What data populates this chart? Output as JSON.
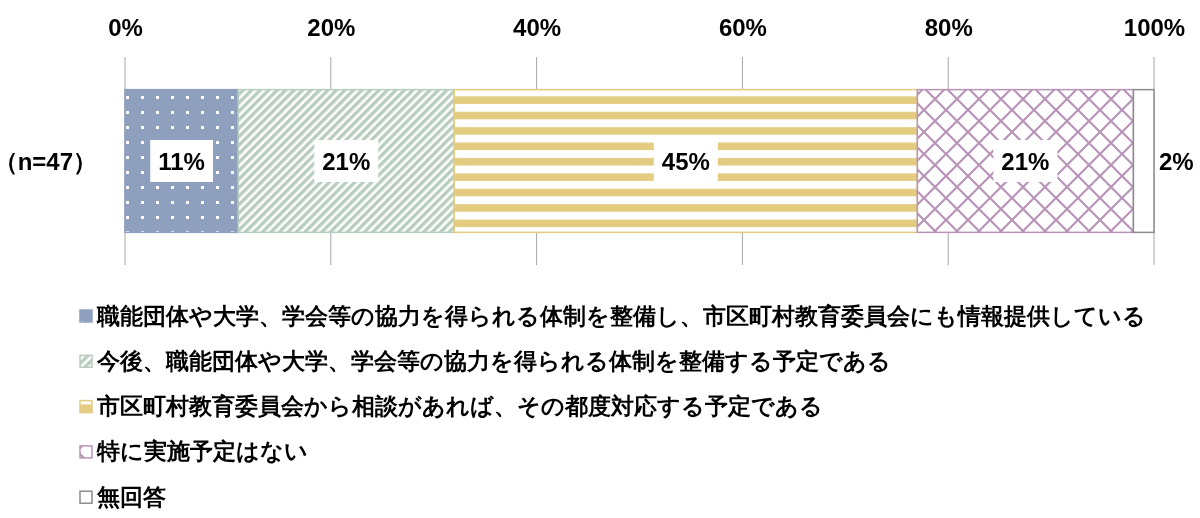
{
  "chart_data": {
    "type": "bar",
    "orientation": "horizontal",
    "stacked": true,
    "categories": [
      "（n=47）"
    ],
    "series": [
      {
        "name": "職能団体や大学、学会等の協力を得られる体制を整備し、市区町村教育委員会にも情報提供している",
        "color": "#8fa0bf",
        "values": [
          11
        ],
        "value_labels": [
          "11%"
        ]
      },
      {
        "name": "今後、職能団体や大学、学会等の協力を得られる体制を整備する予定である",
        "color": "#b9cdbf",
        "values": [
          21
        ],
        "value_labels": [
          "21%"
        ]
      },
      {
        "name": "市区町村教育委員会から相談があれば、その都度対応する予定である",
        "color": "#e3cb80",
        "values": [
          45
        ],
        "value_labels": [
          "45%"
        ]
      },
      {
        "name": "特に実施予定はない",
        "color": "#b895b8",
        "values": [
          21
        ],
        "value_labels": [
          "21%"
        ]
      },
      {
        "name": "無回答",
        "color": "#ffffff",
        "values": [
          2
        ],
        "value_labels": [
          "2%"
        ]
      }
    ],
    "xlim": [
      0,
      100
    ],
    "xticks": [
      {
        "value": 0,
        "label": "0%"
      },
      {
        "value": 20,
        "label": "20%"
      },
      {
        "value": 40,
        "label": "40%"
      },
      {
        "value": 60,
        "label": "60%"
      },
      {
        "value": 80,
        "label": "80%"
      },
      {
        "value": 100,
        "label": "100%"
      }
    ],
    "grid": "x",
    "legend": "bottom"
  }
}
